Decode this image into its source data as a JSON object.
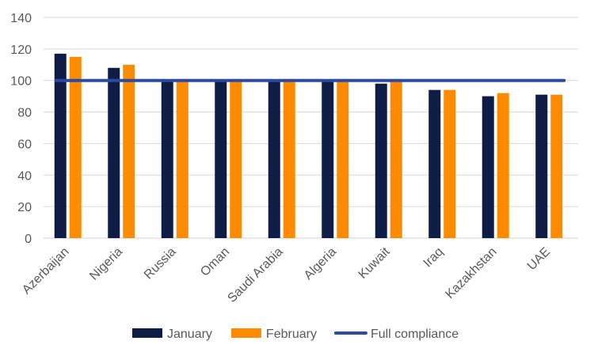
{
  "chart_data": {
    "type": "bar",
    "categories": [
      "Azerbaijan",
      "Nigeria",
      "Russia",
      "Oman",
      "Saudi Arabia",
      "Algeria",
      "Kuwait",
      "Iraq",
      "Kazakhstan",
      "UAE"
    ],
    "series": [
      {
        "name": "January",
        "color": "#0f1c45",
        "values": [
          117,
          108,
          100,
          100,
          100,
          100,
          98,
          94,
          90,
          91
        ]
      },
      {
        "name": "February",
        "color": "#ff8c00",
        "values": [
          115,
          110,
          100,
          100,
          100,
          100,
          100,
          94,
          92,
          91
        ]
      }
    ],
    "reference_line": {
      "name": "Full compliance",
      "value": 100,
      "color": "#2e4a9e"
    },
    "ylim": [
      0,
      140
    ],
    "yticks": [
      0,
      20,
      40,
      60,
      80,
      100,
      120,
      140
    ],
    "grid": true,
    "legend": "bottom",
    "title": "",
    "xlabel": "",
    "ylabel": ""
  }
}
